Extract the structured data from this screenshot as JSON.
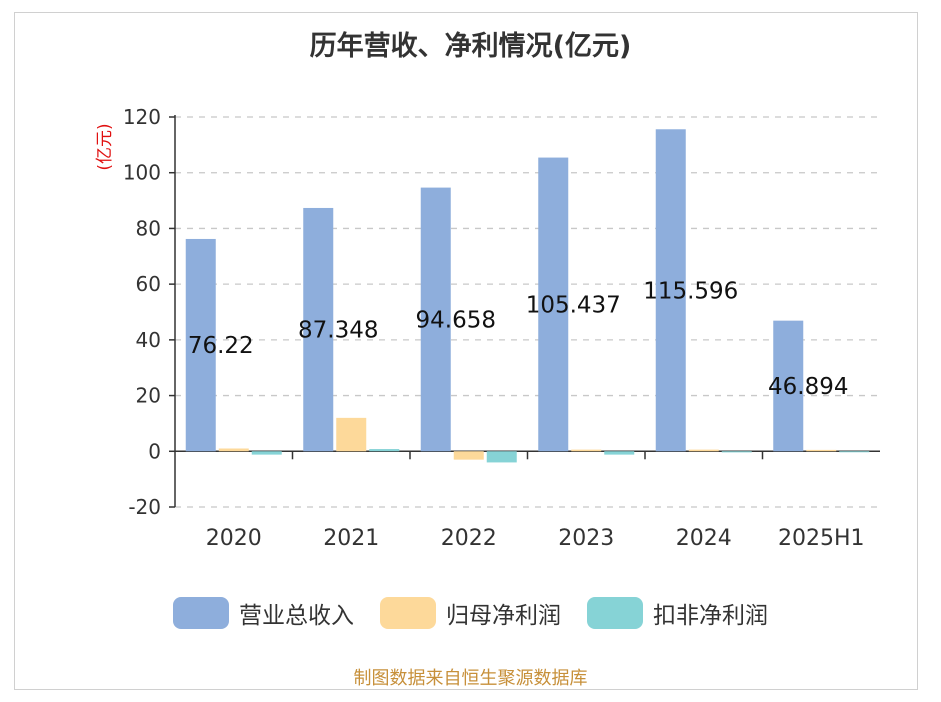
{
  "chart_data": {
    "type": "bar",
    "title": "历年营收、净利情况(亿元)",
    "ylabel": "(亿元)",
    "xlabel": "",
    "ylim": [
      -20,
      120
    ],
    "yticks": [
      120,
      100,
      80,
      60,
      40,
      20,
      0,
      -20
    ],
    "categories": [
      "2020",
      "2021",
      "2022",
      "2023",
      "2024",
      "2025H1"
    ],
    "series": [
      {
        "name": "营业总收入",
        "color": "#8eaedc",
        "values": [
          76.22,
          87.348,
          94.658,
          105.437,
          115.596,
          46.894
        ],
        "labels": [
          "76.22",
          "87.348",
          "94.658",
          "105.437",
          "115.596",
          "46.894"
        ]
      },
      {
        "name": "归母净利润",
        "color": "#fdd99a",
        "values": [
          1.0,
          12.0,
          -3.0,
          0.6,
          0.6,
          0.5
        ]
      },
      {
        "name": "扣非净利润",
        "color": "#86d3d6",
        "values": [
          -1.2,
          0.8,
          -4.0,
          -1.2,
          -0.4,
          -0.3
        ]
      }
    ],
    "grid": true,
    "legend": "bottom-center"
  },
  "footer": "制图数据来自恒生聚源数据库"
}
